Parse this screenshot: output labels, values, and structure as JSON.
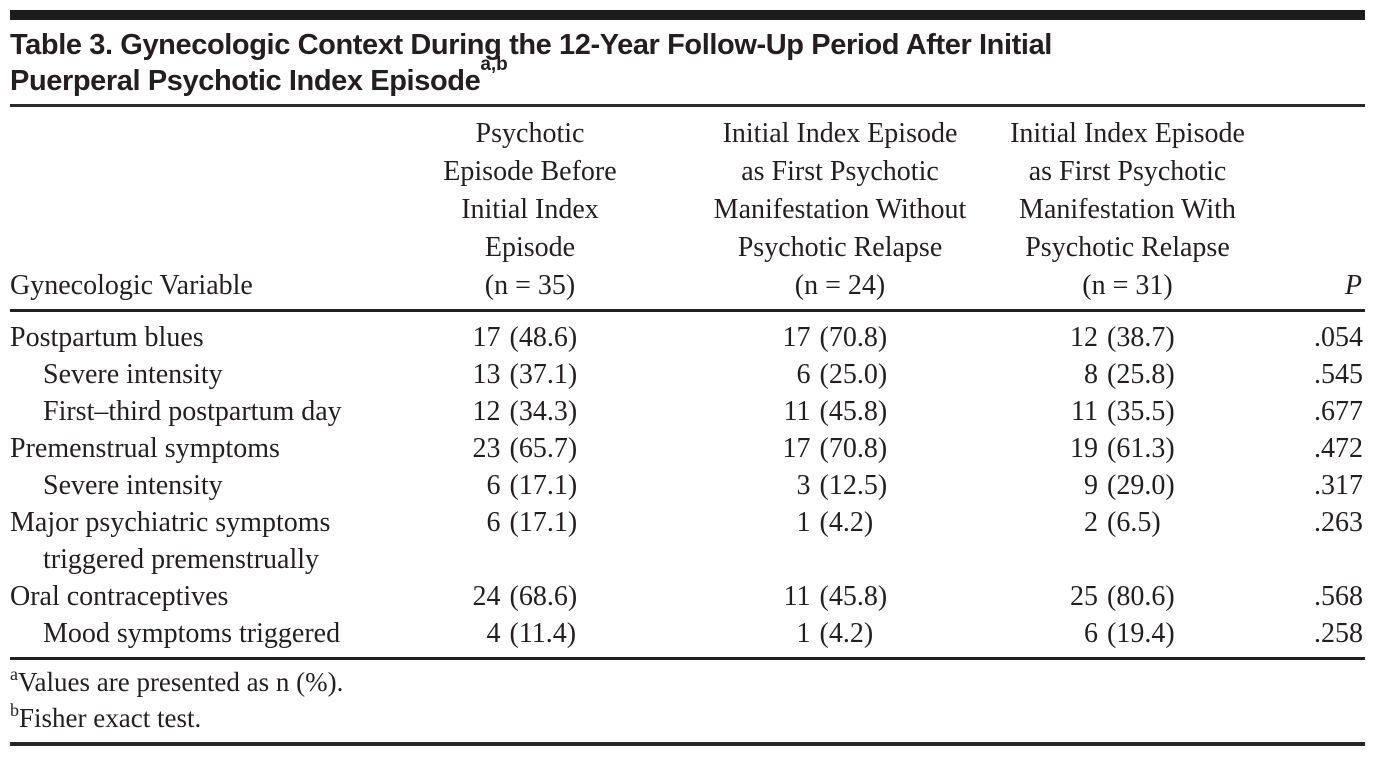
{
  "title": {
    "lines": [
      "Table 3. Gynecologic Context During the 12-Year Follow-Up Period After Initial",
      "Puerperal Psychotic Index Episode"
    ],
    "sup": "a,b"
  },
  "table": {
    "columns": [
      {
        "id": "variable",
        "label": "Gynecologic Variable"
      },
      {
        "id": "psychotic-episode-before",
        "lines": [
          "Psychotic",
          "Episode Before",
          "Initial Index",
          "Episode",
          "(n = 35)"
        ]
      },
      {
        "id": "first-manifestation-without-relapse",
        "lines": [
          "Initial Index Episode",
          "as First Psychotic",
          "Manifestation Without",
          "Psychotic Relapse",
          "(n = 24)"
        ]
      },
      {
        "id": "first-manifestation-with-relapse",
        "lines": [
          "Initial Index Episode",
          "as First Psychotic",
          "Manifestation With",
          "Psychotic Relapse",
          "(n = 31)"
        ]
      },
      {
        "id": "p",
        "label": "P"
      }
    ],
    "rows": [
      {
        "label_lines": [
          "Postpartum blues"
        ],
        "indent": false,
        "values": [
          {
            "n": "17",
            "pct": "(48.6)"
          },
          {
            "n": "17",
            "pct": "(70.8)"
          },
          {
            "n": "12",
            "pct": "(38.7)"
          }
        ],
        "p": ".054"
      },
      {
        "label_lines": [
          "Severe intensity"
        ],
        "indent": true,
        "values": [
          {
            "n": "13",
            "pct": "(37.1)"
          },
          {
            "n": "6",
            "pct": "(25.0)"
          },
          {
            "n": "8",
            "pct": "(25.8)"
          }
        ],
        "p": ".545"
      },
      {
        "label_lines": [
          "First–third postpartum day"
        ],
        "indent": true,
        "values": [
          {
            "n": "12",
            "pct": "(34.3)"
          },
          {
            "n": "11",
            "pct": "(45.8)"
          },
          {
            "n": "11",
            "pct": "(35.5)"
          }
        ],
        "p": ".677"
      },
      {
        "label_lines": [
          "Premenstrual symptoms"
        ],
        "indent": false,
        "values": [
          {
            "n": "23",
            "pct": "(65.7)"
          },
          {
            "n": "17",
            "pct": "(70.8)"
          },
          {
            "n": "19",
            "pct": "(61.3)"
          }
        ],
        "p": ".472"
      },
      {
        "label_lines": [
          "Severe intensity"
        ],
        "indent": true,
        "values": [
          {
            "n": "6",
            "pct": "(17.1)"
          },
          {
            "n": "3",
            "pct": "(12.5)"
          },
          {
            "n": "9",
            "pct": "(29.0)"
          }
        ],
        "p": ".317"
      },
      {
        "label_lines": [
          "Major psychiatric symptoms",
          "triggered premenstrually"
        ],
        "indent": false,
        "values": [
          {
            "n": "6",
            "pct": "(17.1)"
          },
          {
            "n": "1",
            "pct": "(4.2)"
          },
          {
            "n": "2",
            "pct": "(6.5)"
          }
        ],
        "p": ".263"
      },
      {
        "label_lines": [
          "Oral contraceptives"
        ],
        "indent": false,
        "values": [
          {
            "n": "24",
            "pct": "(68.6)"
          },
          {
            "n": "11",
            "pct": "(45.8)"
          },
          {
            "n": "25",
            "pct": "(80.6)"
          }
        ],
        "p": ".568"
      },
      {
        "label_lines": [
          "Mood symptoms triggered"
        ],
        "indent": true,
        "values": [
          {
            "n": "4",
            "pct": "(11.4)"
          },
          {
            "n": "1",
            "pct": "(4.2)"
          },
          {
            "n": "6",
            "pct": "(19.4)"
          }
        ],
        "p": ".258"
      }
    ]
  },
  "footnotes": [
    {
      "marker": "a",
      "text": "Values are presented as n (%)."
    },
    {
      "marker": "b",
      "text": "Fisher exact test."
    }
  ],
  "colors": {
    "text": "#231f20",
    "rule": "#231f20",
    "top_bar": "#1c1c1c",
    "background": "#ffffff"
  }
}
